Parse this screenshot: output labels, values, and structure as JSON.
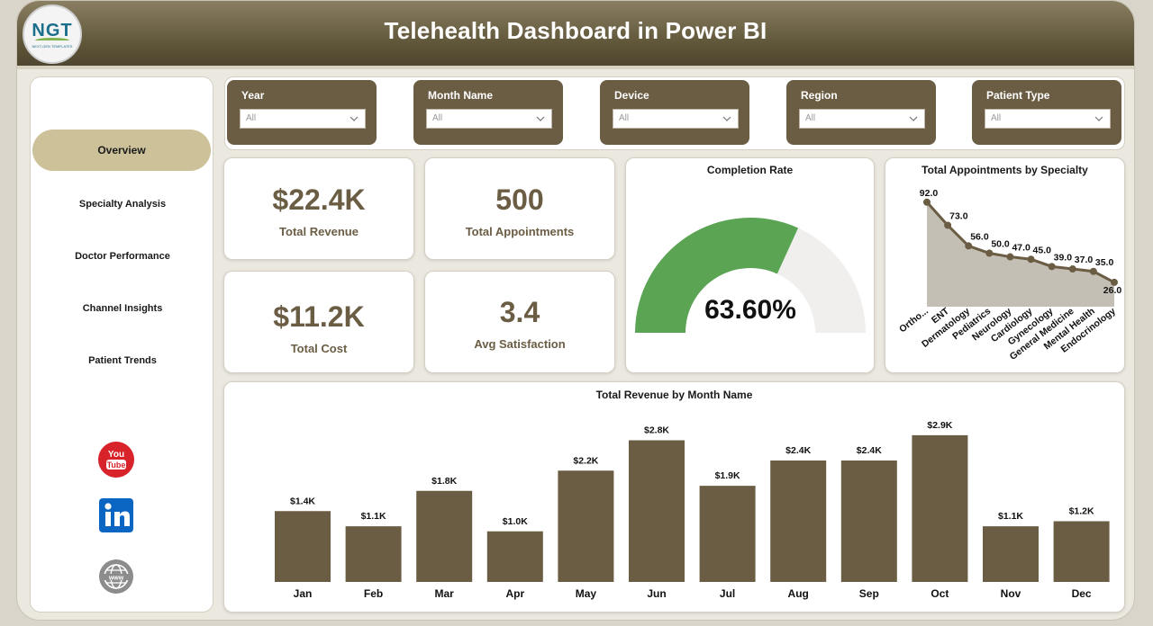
{
  "header": {
    "title": "Telehealth Dashboard in Power BI",
    "logo_text": "NGT",
    "logo_sub": "NEXT-GEN TEMPLATES"
  },
  "sidebar": {
    "items": [
      {
        "label": "Overview",
        "active": true
      },
      {
        "label": "Specialty Analysis",
        "active": false
      },
      {
        "label": "Doctor Performance",
        "active": false
      },
      {
        "label": "Channel Insights",
        "active": false
      },
      {
        "label": "Patient Trends",
        "active": false
      }
    ],
    "social": [
      {
        "name": "youtube-icon",
        "text": "You Tube",
        "color": "#d8232a"
      },
      {
        "name": "linkedin-icon",
        "text": "in",
        "color": "#0a66c2"
      },
      {
        "name": "website-globe-icon",
        "text": "www",
        "color": "#8c8c8c"
      }
    ]
  },
  "filters": [
    {
      "label": "Year",
      "value": "All"
    },
    {
      "label": "Month Name",
      "value": "All"
    },
    {
      "label": "Device",
      "value": "All"
    },
    {
      "label": "Region",
      "value": "All"
    },
    {
      "label": "Patient Type",
      "value": "All"
    }
  ],
  "kpis": {
    "revenue": {
      "value": "$22.4K",
      "label": "Total Revenue"
    },
    "appointments": {
      "value": "500",
      "label": "Total Appointments"
    },
    "cost": {
      "value": "$11.2K",
      "label": "Total Cost"
    },
    "satisfaction": {
      "value": "3.4",
      "label": "Avg Satisfaction"
    }
  },
  "colors": {
    "accent": "#6b5d44",
    "gauge_fill": "#5aa454",
    "gauge_track": "#f0efed",
    "area_fill": "#c4bfb4",
    "line": "#6b5d44",
    "active_nav": "#cdc19a"
  },
  "chart_data": [
    {
      "type": "gauge",
      "title": "Completion Rate",
      "value": 63.6,
      "max": 100,
      "label": "63.60%"
    },
    {
      "type": "area",
      "title": "Total Appointments by Specialty",
      "categories": [
        "Ortho...",
        "ENT",
        "Dermatology",
        "Pediatrics",
        "Neurology",
        "Cardiology",
        "Gynecology",
        "General Medicine",
        "Mental Health",
        "Endocrinology"
      ],
      "values": [
        92,
        73,
        56,
        50,
        47,
        45,
        39,
        37,
        35,
        26
      ],
      "data_labels": [
        "92.0",
        "73.0",
        "56.0",
        "50.0",
        "47.0",
        "45.0",
        "39.0",
        "37.0",
        "35.0",
        "26.0"
      ],
      "ylim": [
        0,
        100
      ],
      "grid": false
    },
    {
      "type": "bar",
      "title": "Total Revenue by Month Name",
      "categories": [
        "Jan",
        "Feb",
        "Mar",
        "Apr",
        "May",
        "Jun",
        "Jul",
        "Aug",
        "Sep",
        "Oct",
        "Nov",
        "Dec"
      ],
      "values": [
        1.4,
        1.1,
        1.8,
        1.0,
        2.2,
        2.8,
        1.9,
        2.4,
        2.4,
        2.9,
        1.1,
        1.2
      ],
      "data_labels": [
        "$1.4K",
        "$1.1K",
        "$1.8K",
        "$1.0K",
        "$2.2K",
        "$2.8K",
        "$1.9K",
        "$2.4K",
        "$2.4K",
        "$2.9K",
        "$1.1K",
        "$1.2K"
      ],
      "ylim": [
        0,
        3.2
      ],
      "grid": false
    }
  ]
}
